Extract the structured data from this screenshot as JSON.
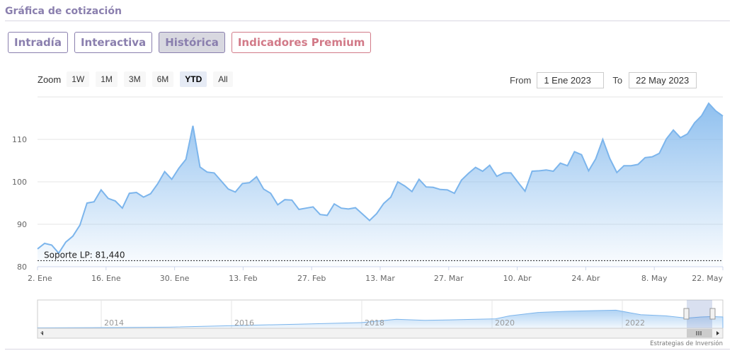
{
  "section": {
    "title": "Gráfica de cotización"
  },
  "tabs": [
    {
      "label": "Intradía",
      "active": false
    },
    {
      "label": "Interactiva",
      "active": false
    },
    {
      "label": "Histórica",
      "active": true
    },
    {
      "label": "Indicadores Premium",
      "active": false
    }
  ],
  "zoom": {
    "label": "Zoom",
    "buttons": [
      "1W",
      "1M",
      "3M",
      "6M",
      "YTD",
      "All"
    ],
    "selected": "YTD"
  },
  "range": {
    "from_label": "From",
    "from_value": "1 Ene 2023",
    "to_label": "To",
    "to_value": "22 May 2023"
  },
  "colors": {
    "brand": "#8a7fae",
    "premium": "#d27a88",
    "series": "#7cb5ec"
  },
  "navigator": {
    "year_labels": [
      "2014",
      "2016",
      "2018",
      "2020",
      "2022"
    ]
  },
  "credits": "Estrategias de Inversión",
  "chart_data": {
    "type": "area",
    "title": "",
    "xlabel": "",
    "ylabel": "",
    "ylim": [
      80,
      120
    ],
    "yticks": [
      80,
      90,
      100,
      110
    ],
    "x_tick_labels": [
      "2. Ene",
      "16. Ene",
      "30. Ene",
      "13. Feb",
      "27. Feb",
      "13. Mar",
      "27. Mar",
      "10. Abr",
      "24. Abr",
      "8. May",
      "22. May"
    ],
    "support_line": {
      "label": "Soporte LP: 81,440",
      "value": 81.44
    },
    "series": [
      {
        "values": [
          84.2,
          85.5,
          85.1,
          83.2,
          85.8,
          87.2,
          89.8,
          95,
          95.3,
          98.1,
          96.1,
          95.5,
          93.8,
          97.3,
          97.5,
          96.4,
          97.2,
          99.5,
          102.4,
          100.6,
          103.2,
          105.3,
          113.2,
          103.5,
          102.3,
          102.1,
          100.2,
          98.3,
          97.6,
          99.6,
          99.8,
          101.2,
          98.3,
          97.3,
          94.6,
          95.8,
          95.7,
          93.5,
          93.8,
          94.1,
          92.3,
          92.1,
          94.8,
          93.8,
          93.6,
          93.9,
          92.4,
          90.9,
          92.5,
          94.9,
          96.4,
          100,
          99,
          97.7,
          100.6,
          98.8,
          98.7,
          98.2,
          98.1,
          97.3,
          100.4,
          102,
          103.4,
          102.5,
          103.9,
          101.3,
          102.1,
          102.1,
          99.9,
          97.8,
          102.5,
          102.6,
          102.8,
          102.5,
          104.4,
          103.8,
          107.1,
          106.4,
          102.6,
          105.4,
          110,
          105.5,
          102.2,
          103.8,
          103.8,
          104.1,
          105.7,
          105.9,
          106.7,
          110.1,
          112.2,
          110.4,
          111.3,
          113.9,
          115.6,
          118.5,
          116.7,
          115.5
        ]
      }
    ]
  }
}
